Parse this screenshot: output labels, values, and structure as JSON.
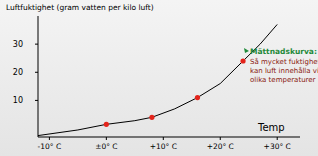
{
  "chart_data": {
    "type": "line",
    "y_label": "Luftfuktighet (gram vatten per kilo luft)",
    "x_label": "Temp",
    "xlim": [
      -12,
      34
    ],
    "ylim": [
      -3,
      40
    ],
    "xticks": [
      {
        "value": -10,
        "label": "-10° C"
      },
      {
        "value": 0,
        "label": "±0° C"
      },
      {
        "value": 10,
        "label": "+10° C"
      },
      {
        "value": 20,
        "label": "+20° C"
      },
      {
        "value": 30,
        "label": "+30° C"
      }
    ],
    "yticks": [
      10,
      20,
      30
    ],
    "grid": false,
    "series": [
      {
        "type": "line",
        "color": "#000000",
        "x": [
          -12,
          -5,
          0,
          5,
          8,
          12,
          16,
          20,
          24,
          27,
          30
        ],
        "values": [
          -2.5,
          -0.5,
          1.5,
          2.8,
          4,
          7,
          11,
          16,
          24,
          30,
          37
        ]
      },
      {
        "type": "scatter",
        "color": "#e3241b",
        "marker": "circle",
        "x": [
          0,
          8,
          16,
          24
        ],
        "values": [
          1.5,
          4,
          11,
          24
        ]
      }
    ],
    "annotation": {
      "title": "Mättnadskurva:",
      "lines": [
        "Så mycket fuktighet",
        "kan luft innehålla vid",
        "olika temperaturer"
      ]
    }
  }
}
